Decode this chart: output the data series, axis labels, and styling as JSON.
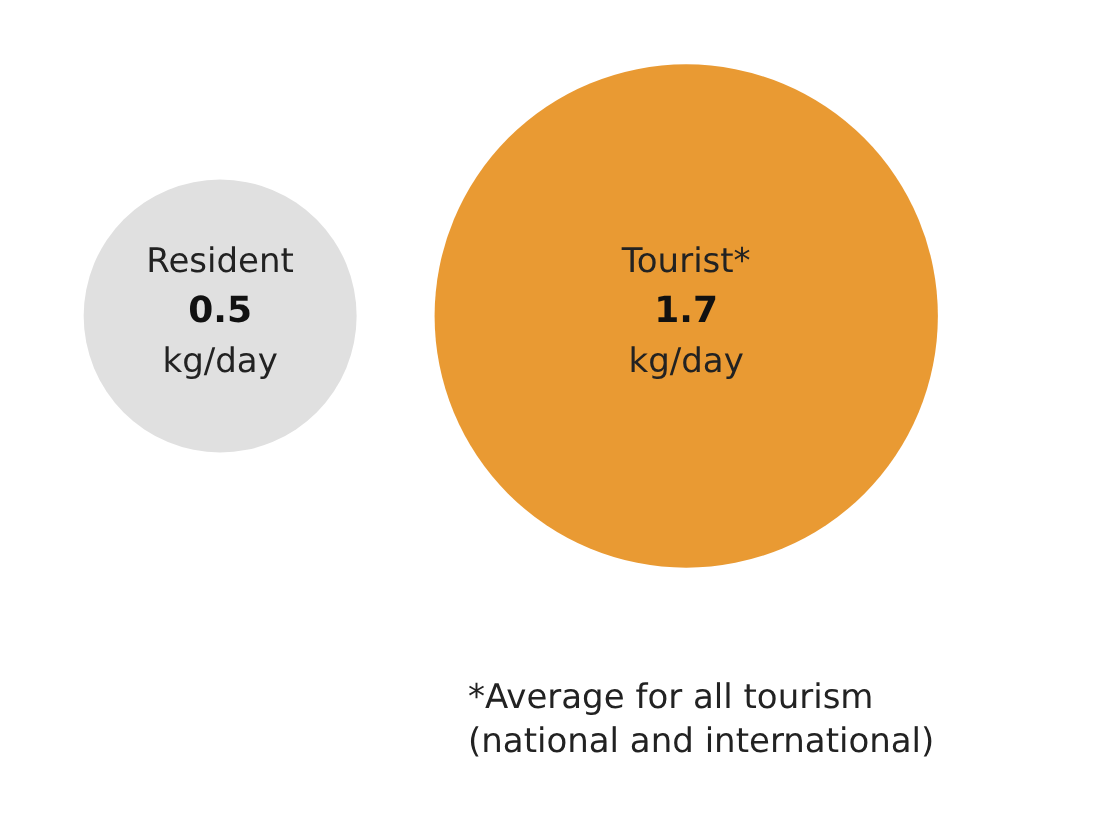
{
  "chart_data": {
    "type": "other",
    "categories": [
      "Resident",
      "Tourist*"
    ],
    "values": [
      0.5,
      1.7
    ],
    "colors": [
      "#e0e0e0",
      "#e99a33"
    ],
    "ylabel": "kg/day",
    "data_labels": true,
    "annotations": [
      "*Average for all tourism (national and international)"
    ]
  }
}
